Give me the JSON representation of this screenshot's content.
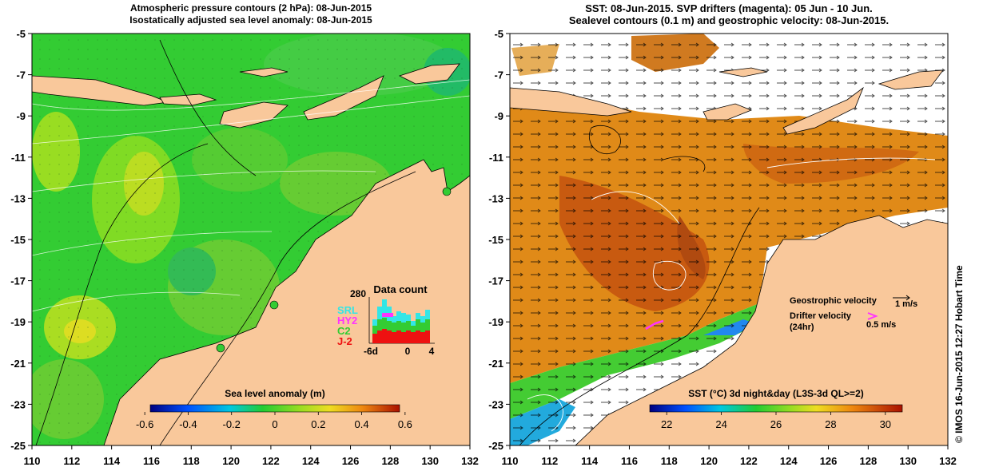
{
  "left_panel": {
    "title_line1": "Atmospheric pressure contours (2 hPa): 08-Jun-2015",
    "title_line2": "Isostatically adjusted sea level anomaly: 08-Jun-2015",
    "colorbar_title": "Sea level anomaly (m)",
    "colorbar_ticks": [
      "-0.6",
      "-0.4",
      "-0.2",
      "0",
      "0.2",
      "0.4",
      "0.6"
    ],
    "inset": {
      "title": "Data count",
      "ymax_label": "280",
      "x_ticks": [
        "-6d",
        "0",
        "4"
      ],
      "missions": [
        {
          "name": "SRL",
          "color": "#33e6e6"
        },
        {
          "name": "HY2",
          "color": "#ff33ff"
        },
        {
          "name": "C2",
          "color": "#33cc33"
        },
        {
          "name": "J-2",
          "color": "#ee1111"
        }
      ]
    }
  },
  "right_panel": {
    "title_line1": "SST: 08-Jun-2015. SVP drifters (magenta): 05 Jun - 10 Jun.",
    "title_line2": "Sealevel contours (0.1 m) and geostrophic velocity: 08-Jun-2015.",
    "colorbar_title": "SST (°C) 3d night&day (L3S-3d QL>=2)",
    "colorbar_ticks": [
      "22",
      "24",
      "26",
      "28",
      "30"
    ],
    "legend_geostrophic": "Geostrophic velocity",
    "legend_geostrophic_scale": "1 m/s",
    "legend_drifter_line1": "Drifter velocity",
    "legend_drifter_line2": "(24hr)",
    "legend_drifter_scale": "0.5 m/s"
  },
  "axes": {
    "x_ticks": [
      "110",
      "112",
      "114",
      "116",
      "118",
      "120",
      "122",
      "124",
      "126",
      "128",
      "130",
      "132"
    ],
    "y_ticks": [
      "-5",
      "-7",
      "-9",
      "-11",
      "-13",
      "-15",
      "-17",
      "-19",
      "-21",
      "-23",
      "-25"
    ]
  },
  "credit": "© IMOS 16-Jun-2015 12:27 Hobart Time",
  "colors": {
    "land": "#f9c89b",
    "sla_green": "#33cc33",
    "sst_orange": "#e07a10",
    "drifter": "#ff33ff"
  }
}
